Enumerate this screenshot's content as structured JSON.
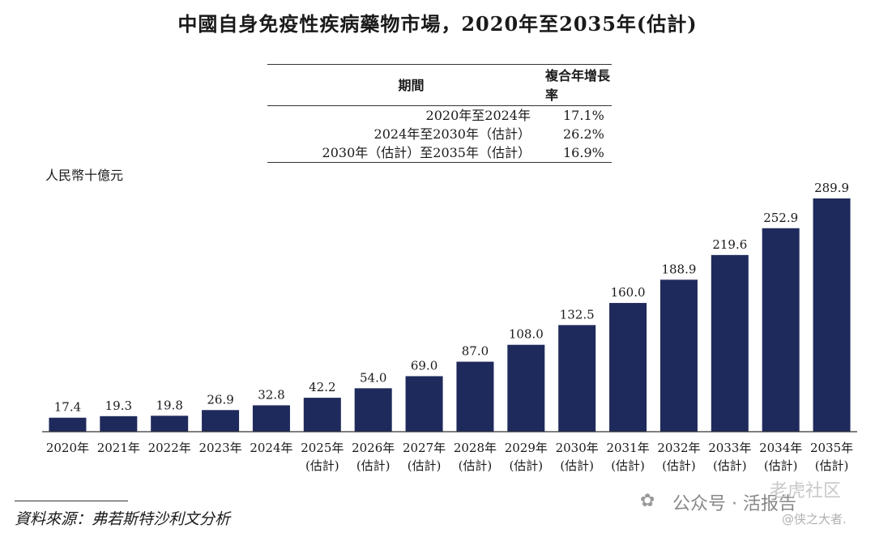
{
  "title": "中國自身免疫性疾病藥物市場，2020年至2035年(估計)",
  "cagr_table": {
    "headers": [
      "期間",
      "複合年增長率"
    ],
    "rows": [
      {
        "period": "2020年至2024年",
        "rate": "17.1%"
      },
      {
        "period": "2024年至2030年（估計）",
        "rate": "26.2%"
      },
      {
        "period": "2030年（估計）至2035年（估計）",
        "rate": "16.9%"
      }
    ]
  },
  "unit_label": "人民幣十億元",
  "chart_data": {
    "type": "bar",
    "title": "中國自身免疫性疾病藥物市場，2020年至2035年(估計)",
    "ylabel": "人民幣十億元",
    "xlabel": "",
    "ylim": [
      0,
      300
    ],
    "bar_color": "#1f2a5c",
    "categories": [
      {
        "year": "2020年",
        "note": ""
      },
      {
        "year": "2021年",
        "note": ""
      },
      {
        "year": "2022年",
        "note": ""
      },
      {
        "year": "2023年",
        "note": ""
      },
      {
        "year": "2024年",
        "note": ""
      },
      {
        "year": "2025年",
        "note": "(估計)"
      },
      {
        "year": "2026年",
        "note": "(估計)"
      },
      {
        "year": "2027年",
        "note": "(估計)"
      },
      {
        "year": "2028年",
        "note": "(估計)"
      },
      {
        "year": "2029年",
        "note": "(估計)"
      },
      {
        "year": "2030年",
        "note": "(估計)"
      },
      {
        "year": "2031年",
        "note": "(估計)"
      },
      {
        "year": "2032年",
        "note": "(估計)"
      },
      {
        "year": "2033年",
        "note": "(估計)"
      },
      {
        "year": "2034年",
        "note": "(估計)"
      },
      {
        "year": "2035年",
        "note": "(估計)"
      }
    ],
    "values": [
      17.4,
      19.3,
      19.8,
      26.9,
      32.8,
      42.2,
      54.0,
      69.0,
      87.0,
      108.0,
      132.5,
      160.0,
      188.9,
      219.6,
      252.9,
      289.9
    ],
    "value_labels": [
      "17.4",
      "19.3",
      "19.8",
      "26.9",
      "32.8",
      "42.2",
      "54.0",
      "69.0",
      "87.0",
      "108.0",
      "132.5",
      "160.0",
      "188.9",
      "219.6",
      "252.9",
      "289.9"
    ]
  },
  "source": "資料來源：弗若斯特沙利文分析",
  "watermark": {
    "logo": "✿",
    "text": "公众号 · 活报告",
    "ghost": "老虎社区",
    "handle": "@侠之大者."
  }
}
